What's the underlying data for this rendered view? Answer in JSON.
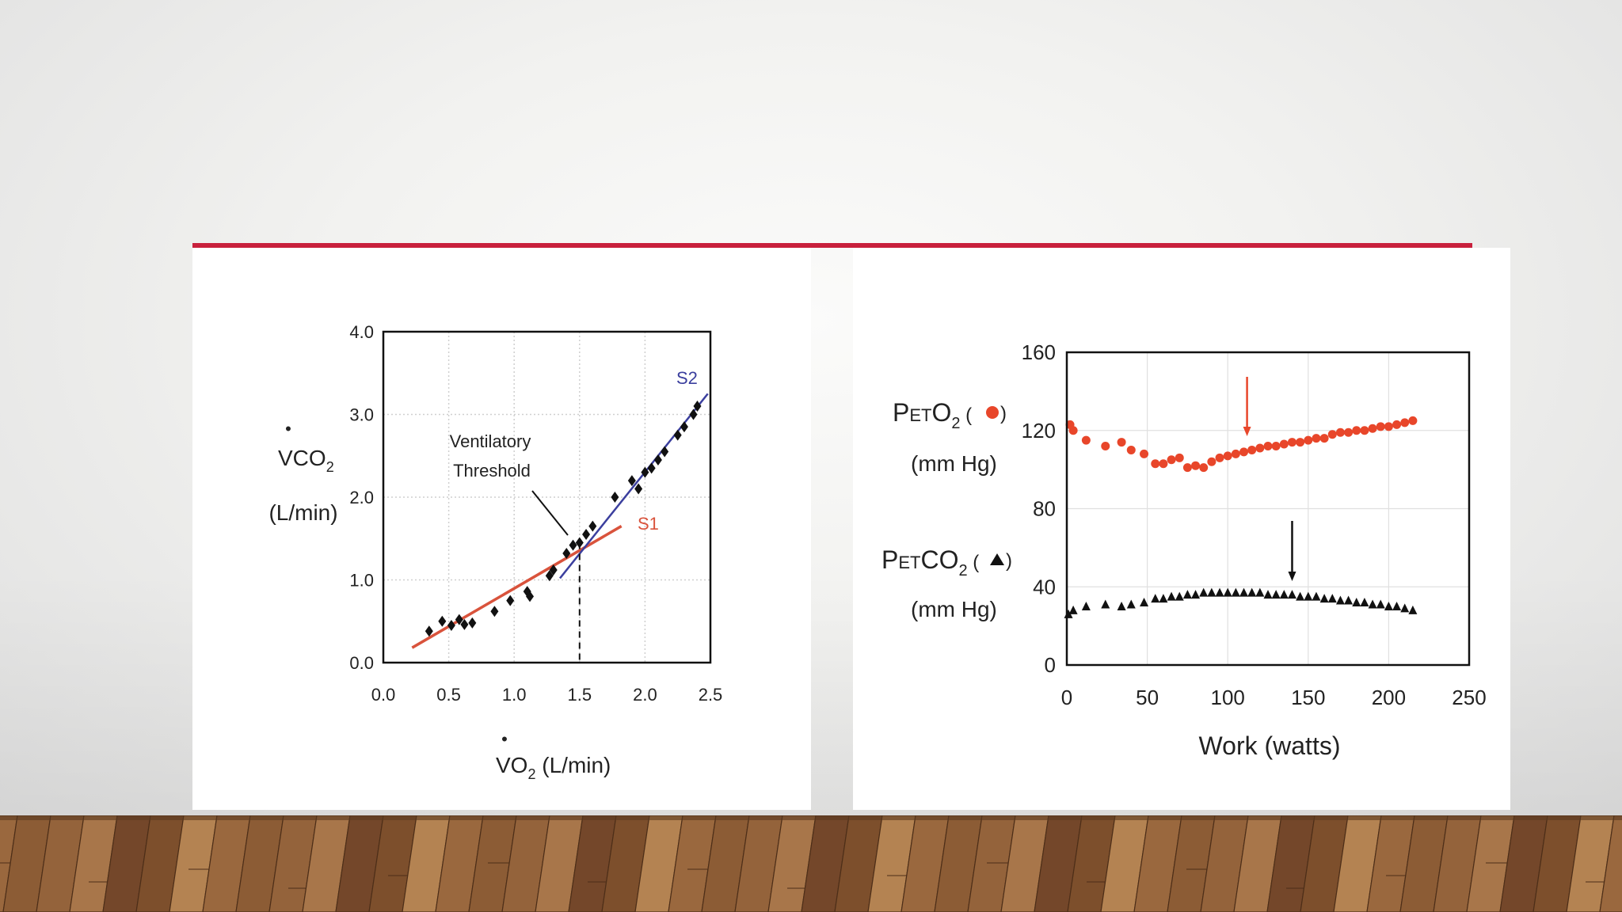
{
  "colors": {
    "accent_line": "#c8203c",
    "floor_light": "#b07a4a",
    "floor_dark": "#6b4226",
    "s1_line": "#d9533c",
    "s2_line": "#3b3f9e",
    "peto2_marker": "#e8462a",
    "petco2_marker": "#111111"
  },
  "chart_data": [
    {
      "type": "scatter",
      "xlabel_main": "VO",
      "xlabel_sub": "2",
      "xlabel_unit": " (L/min)",
      "ylabel_main": "VCO",
      "ylabel_sub": "2",
      "ylabel_unit": "(L/min)",
      "xlim": [
        0,
        2.5
      ],
      "ylim": [
        0,
        4
      ],
      "xticks": [
        "0.0",
        "0.5",
        "1.0",
        "1.5",
        "2.0",
        "2.5"
      ],
      "yticks": [
        "0.0",
        "1.0",
        "2.0",
        "3.0",
        "4.0"
      ],
      "grid": true,
      "annotation_line1": "Ventilatory",
      "annotation_line2": "Threshold",
      "threshold_x": 1.5,
      "s1_label": "S1",
      "s2_label": "S2",
      "s1_line": [
        [
          0.22,
          0.18
        ],
        [
          1.82,
          1.65
        ]
      ],
      "s2_line": [
        [
          1.35,
          1.02
        ],
        [
          2.48,
          3.25
        ]
      ],
      "points": [
        [
          0.35,
          0.38
        ],
        [
          0.45,
          0.5
        ],
        [
          0.52,
          0.45
        ],
        [
          0.58,
          0.52
        ],
        [
          0.62,
          0.46
        ],
        [
          0.68,
          0.48
        ],
        [
          0.85,
          0.62
        ],
        [
          0.97,
          0.75
        ],
        [
          1.1,
          0.86
        ],
        [
          1.12,
          0.8
        ],
        [
          1.27,
          1.05
        ],
        [
          1.3,
          1.12
        ],
        [
          1.4,
          1.32
        ],
        [
          1.45,
          1.42
        ],
        [
          1.5,
          1.45
        ],
        [
          1.55,
          1.55
        ],
        [
          1.6,
          1.65
        ],
        [
          1.77,
          2.0
        ],
        [
          1.9,
          2.2
        ],
        [
          1.95,
          2.1
        ],
        [
          2.0,
          2.3
        ],
        [
          2.05,
          2.35
        ],
        [
          2.1,
          2.45
        ],
        [
          2.15,
          2.55
        ],
        [
          2.25,
          2.75
        ],
        [
          2.3,
          2.85
        ],
        [
          2.37,
          3.0
        ],
        [
          2.4,
          3.1
        ]
      ]
    },
    {
      "type": "scatter",
      "xlabel": "Work (watts)",
      "xlim": [
        0,
        250
      ],
      "ylim": [
        0,
        160
      ],
      "xticks": [
        "0",
        "50",
        "100",
        "150",
        "200",
        "250"
      ],
      "yticks": [
        "0",
        "40",
        "80",
        "120",
        "160"
      ],
      "grid": true,
      "peto2_label_P": "P",
      "peto2_label_ET": "ET",
      "peto2_label_O": "O",
      "peto2_label_sub": "2",
      "peto2_open": " (",
      "peto2_close": ")",
      "peto2_unit": "(mm Hg)",
      "petco2_label_P": "P",
      "petco2_label_ET": "ET",
      "petco2_label_CO": "CO",
      "petco2_label_sub": "2",
      "petco2_open": " (",
      "petco2_close": ")",
      "petco2_unit": "(mm Hg)",
      "peto2_arrow_x": 112,
      "petco2_arrow_x": 140,
      "series": [
        {
          "key": "peto2",
          "marker": "circle",
          "x": [
            2,
            4,
            12,
            24,
            34,
            40,
            48,
            55,
            60,
            65,
            70,
            75,
            80,
            85,
            90,
            95,
            100,
            105,
            110,
            115,
            120,
            125,
            130,
            135,
            140,
            145,
            150,
            155,
            160,
            165,
            170,
            175,
            180,
            185,
            190,
            195,
            200,
            205,
            210,
            215
          ],
          "y": [
            123,
            120,
            115,
            112,
            114,
            110,
            108,
            103,
            103,
            105,
            106,
            101,
            102,
            101,
            104,
            106,
            107,
            108,
            109,
            110,
            111,
            112,
            112,
            113,
            114,
            114,
            115,
            116,
            116,
            118,
            119,
            119,
            120,
            120,
            121,
            122,
            122,
            123,
            124,
            125
          ]
        },
        {
          "key": "petco2",
          "marker": "triangle",
          "x": [
            1,
            4,
            12,
            24,
            34,
            40,
            48,
            55,
            60,
            65,
            70,
            75,
            80,
            85,
            90,
            95,
            100,
            105,
            110,
            115,
            120,
            125,
            130,
            135,
            140,
            145,
            150,
            155,
            160,
            165,
            170,
            175,
            180,
            185,
            190,
            195,
            200,
            205,
            210,
            215
          ],
          "y": [
            26,
            28,
            30,
            31,
            30,
            31,
            32,
            34,
            34,
            35,
            35,
            36,
            36,
            37,
            37,
            37,
            37,
            37,
            37,
            37,
            37,
            36,
            36,
            36,
            36,
            35,
            35,
            35,
            34,
            34,
            33,
            33,
            32,
            32,
            31,
            31,
            30,
            30,
            29,
            28
          ]
        }
      ]
    }
  ]
}
